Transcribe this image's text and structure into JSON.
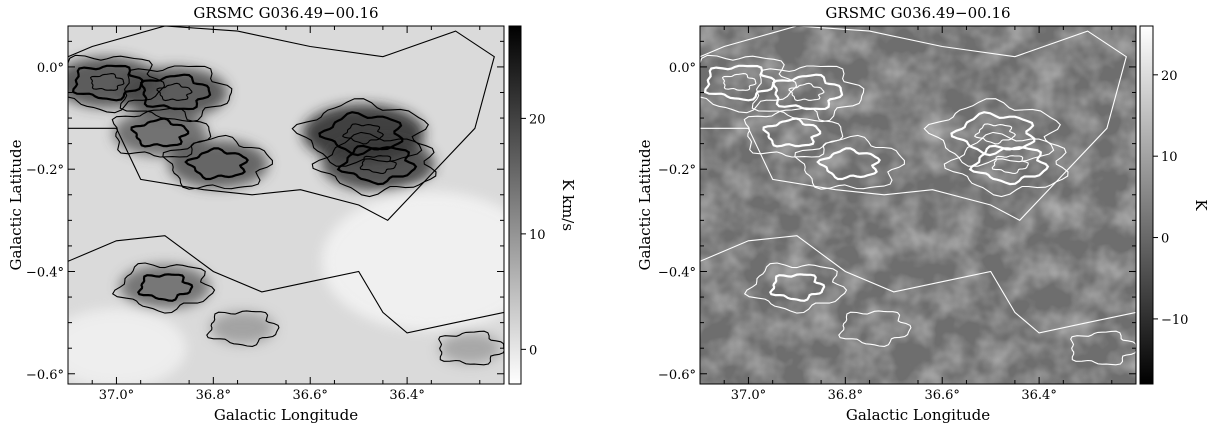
{
  "chart_data": [
    {
      "type": "heatmap",
      "title": "GRSMC G036.49−00.16",
      "xlabel": "Galactic Longitude",
      "ylabel": "Galactic Latitude",
      "xlim": [
        37.1,
        36.2
      ],
      "ylim": [
        -0.62,
        0.08
      ],
      "x_ticks": [
        "37.0°",
        "36.8°",
        "36.6°",
        "36.4°"
      ],
      "x_tick_values": [
        37.0,
        36.8,
        36.6,
        36.4
      ],
      "y_ticks": [
        "0.0°",
        "−0.2°",
        "−0.4°",
        "−0.6°"
      ],
      "y_tick_values": [
        0.0,
        -0.2,
        -0.4,
        -0.6
      ],
      "colorbar": {
        "label": "K km/s",
        "range": [
          -3,
          28
        ],
        "ticks": [
          "0",
          "10",
          "20"
        ],
        "tick_values": [
          0,
          10,
          20
        ],
        "colormap": "white-to-black"
      },
      "contour_color": "#000000",
      "regions": [
        {
          "l": 37.02,
          "b": -0.03,
          "peak": 22
        },
        {
          "l": 36.88,
          "b": -0.05,
          "peak": 22
        },
        {
          "l": 36.91,
          "b": -0.13,
          "peak": 18
        },
        {
          "l": 36.79,
          "b": -0.19,
          "peak": 20
        },
        {
          "l": 36.49,
          "b": -0.13,
          "peak": 27
        },
        {
          "l": 36.46,
          "b": -0.19,
          "peak": 24
        },
        {
          "l": 36.9,
          "b": -0.43,
          "peak": 17
        },
        {
          "l": 36.74,
          "b": -0.51,
          "peak": 9
        },
        {
          "l": 36.27,
          "b": -0.55,
          "peak": 8
        }
      ]
    },
    {
      "type": "heatmap",
      "title": "GRSMC G036.49−00.16",
      "xlabel": "Galactic Longitude",
      "ylabel": "Galactic Latitude",
      "xlim": [
        37.1,
        36.2
      ],
      "ylim": [
        -0.62,
        0.08
      ],
      "x_ticks": [
        "37.0°",
        "36.8°",
        "36.6°",
        "36.4°"
      ],
      "x_tick_values": [
        37.0,
        36.8,
        36.6,
        36.4
      ],
      "y_ticks": [
        "0.0°",
        "−0.2°",
        "−0.4°",
        "−0.6°"
      ],
      "y_tick_values": [
        0.0,
        -0.2,
        -0.4,
        -0.6
      ],
      "colorbar": {
        "label": "K",
        "range": [
          -18,
          26
        ],
        "ticks": [
          "−10",
          "0",
          "10",
          "20"
        ],
        "tick_values": [
          -10,
          0,
          10,
          20
        ],
        "colormap": "black-to-white"
      },
      "contour_color": "#ffffff"
    }
  ]
}
